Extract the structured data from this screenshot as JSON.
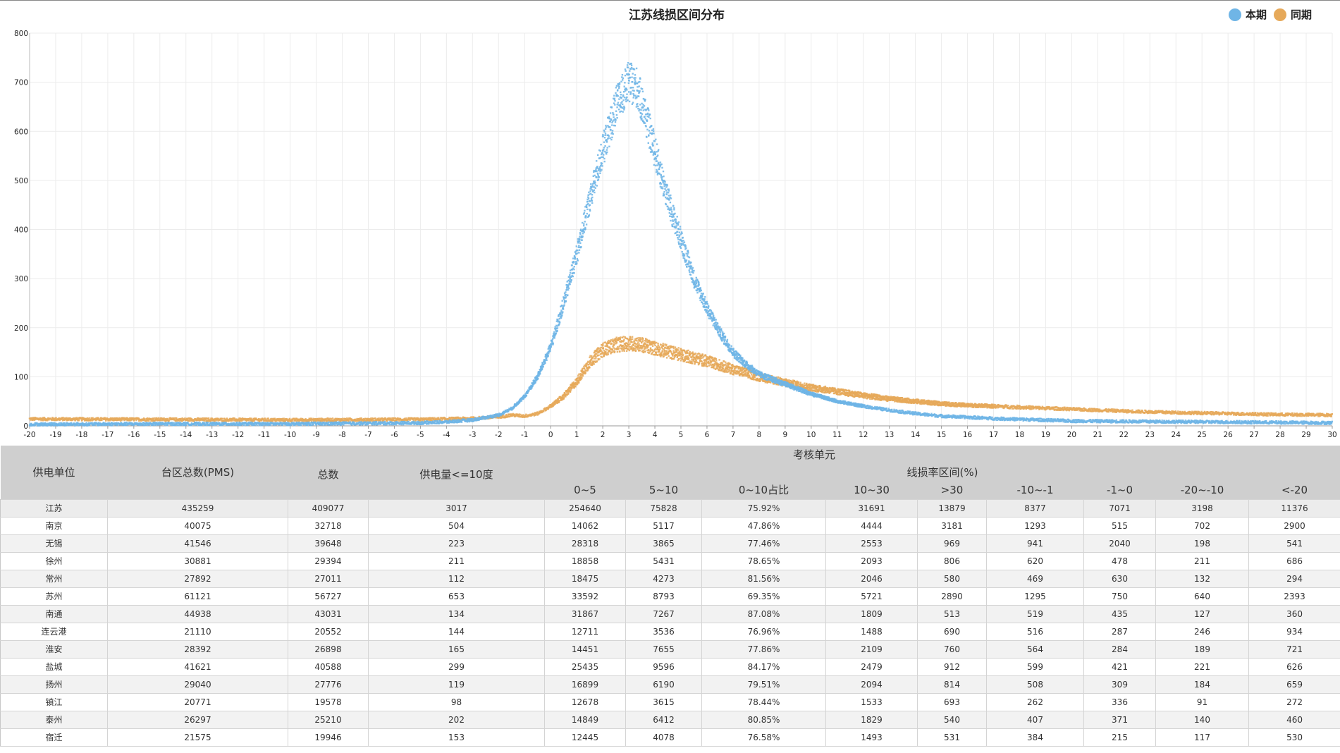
{
  "chart_data": {
    "type": "scatter",
    "title": "江苏线损区间分布",
    "xlim": [
      -20,
      30
    ],
    "ylim": [
      0,
      800
    ],
    "x_ticks": [
      "-20",
      "-19",
      "-18",
      "-17",
      "-16",
      "-15",
      "-14",
      "-13",
      "-12",
      "-11",
      "-10",
      "-9",
      "-8",
      "-7",
      "-6",
      "-5",
      "-4",
      "-3",
      "-2",
      "-1",
      "0",
      "1",
      "2",
      "3",
      "4",
      "5",
      "6",
      "7",
      "8",
      "9",
      "10",
      "11",
      "12",
      "13",
      "14",
      "15",
      "16",
      "17",
      "18",
      "19",
      "20",
      "21",
      "22",
      "23",
      "24",
      "25",
      "26",
      "27",
      "28",
      "29",
      "30"
    ],
    "y_ticks": [
      "0",
      "100",
      "200",
      "300",
      "400",
      "500",
      "600",
      "700",
      "800"
    ],
    "grid": true,
    "legend_position": "top-right",
    "series": [
      {
        "name": "本期",
        "color": "#6fb5e6",
        "points": [
          [
            -20,
            3
          ],
          [
            -15,
            4
          ],
          [
            -10,
            4
          ],
          [
            -5,
            6
          ],
          [
            -4,
            8
          ],
          [
            -3,
            12
          ],
          [
            -2,
            22
          ],
          [
            -1.5,
            35
          ],
          [
            -1,
            60
          ],
          [
            -0.5,
            100
          ],
          [
            0,
            160
          ],
          [
            0.5,
            250
          ],
          [
            1,
            350
          ],
          [
            1.5,
            460
          ],
          [
            2,
            560
          ],
          [
            2.5,
            650
          ],
          [
            3,
            700
          ],
          [
            3.3,
            690
          ],
          [
            3.6,
            640
          ],
          [
            4,
            560
          ],
          [
            4.5,
            460
          ],
          [
            5,
            380
          ],
          [
            5.5,
            300
          ],
          [
            6,
            240
          ],
          [
            6.5,
            190
          ],
          [
            7,
            150
          ],
          [
            7.5,
            125
          ],
          [
            8,
            105
          ],
          [
            9,
            85
          ],
          [
            10,
            65
          ],
          [
            11,
            50
          ],
          [
            12,
            40
          ],
          [
            13,
            32
          ],
          [
            14,
            25
          ],
          [
            15,
            20
          ],
          [
            17,
            15
          ],
          [
            20,
            10
          ],
          [
            25,
            8
          ],
          [
            30,
            6
          ]
        ]
      },
      {
        "name": "同期",
        "color": "#e6a95a",
        "points": [
          [
            -20,
            14
          ],
          [
            -15,
            13
          ],
          [
            -10,
            12
          ],
          [
            -5,
            13
          ],
          [
            -3,
            15
          ],
          [
            -2,
            18
          ],
          [
            -1.5,
            22
          ],
          [
            -1,
            20
          ],
          [
            -0.5,
            25
          ],
          [
            0,
            40
          ],
          [
            0.5,
            60
          ],
          [
            1,
            90
          ],
          [
            1.5,
            130
          ],
          [
            2,
            155
          ],
          [
            2.5,
            165
          ],
          [
            3,
            168
          ],
          [
            3.5,
            165
          ],
          [
            4,
            158
          ],
          [
            5,
            145
          ],
          [
            6,
            132
          ],
          [
            7,
            115
          ],
          [
            8,
            100
          ],
          [
            9,
            88
          ],
          [
            10,
            78
          ],
          [
            11,
            70
          ],
          [
            12,
            62
          ],
          [
            13,
            55
          ],
          [
            14,
            50
          ],
          [
            15,
            45
          ],
          [
            16,
            42
          ],
          [
            18,
            38
          ],
          [
            20,
            34
          ],
          [
            22,
            30
          ],
          [
            24,
            27
          ],
          [
            26,
            25
          ],
          [
            28,
            23
          ],
          [
            30,
            22
          ]
        ]
      }
    ]
  },
  "table": {
    "headers": {
      "unit": "供电单位",
      "pms_total": "台区总数(PMS)",
      "assess": "考核单元",
      "total": "总数",
      "supply_le10": "供电量<=10度",
      "rate_range": "线损率区间(%)",
      "cols": [
        "0~5",
        "5~10",
        "0~10占比",
        "10~30",
        ">30",
        "-10~-1",
        "-1~0",
        "-20~-10",
        "<-20"
      ]
    },
    "rows": [
      [
        "江苏",
        "435259",
        "409077",
        "3017",
        "254640",
        "75828",
        "75.92%",
        "31691",
        "13879",
        "8377",
        "7071",
        "3198",
        "11376"
      ],
      [
        "南京",
        "40075",
        "32718",
        "504",
        "14062",
        "5117",
        "47.86%",
        "4444",
        "3181",
        "1293",
        "515",
        "702",
        "2900"
      ],
      [
        "无锡",
        "41546",
        "39648",
        "223",
        "28318",
        "3865",
        "77.46%",
        "2553",
        "969",
        "941",
        "2040",
        "198",
        "541"
      ],
      [
        "徐州",
        "30881",
        "29394",
        "211",
        "18858",
        "5431",
        "78.65%",
        "2093",
        "806",
        "620",
        "478",
        "211",
        "686"
      ],
      [
        "常州",
        "27892",
        "27011",
        "112",
        "18475",
        "4273",
        "81.56%",
        "2046",
        "580",
        "469",
        "630",
        "132",
        "294"
      ],
      [
        "苏州",
        "61121",
        "56727",
        "653",
        "33592",
        "8793",
        "69.35%",
        "5721",
        "2890",
        "1295",
        "750",
        "640",
        "2393"
      ],
      [
        "南通",
        "44938",
        "43031",
        "134",
        "31867",
        "7267",
        "87.08%",
        "1809",
        "513",
        "519",
        "435",
        "127",
        "360"
      ],
      [
        "连云港",
        "21110",
        "20552",
        "144",
        "12711",
        "3536",
        "76.96%",
        "1488",
        "690",
        "516",
        "287",
        "246",
        "934"
      ],
      [
        "淮安",
        "28392",
        "26898",
        "165",
        "14451",
        "7655",
        "77.86%",
        "2109",
        "760",
        "564",
        "284",
        "189",
        "721"
      ],
      [
        "盐城",
        "41621",
        "40588",
        "299",
        "25435",
        "9596",
        "84.17%",
        "2479",
        "912",
        "599",
        "421",
        "221",
        "626"
      ],
      [
        "扬州",
        "29040",
        "27776",
        "119",
        "16899",
        "6190",
        "79.51%",
        "2094",
        "814",
        "508",
        "309",
        "184",
        "659"
      ],
      [
        "镇江",
        "20771",
        "19578",
        "98",
        "12678",
        "3615",
        "78.44%",
        "1533",
        "693",
        "262",
        "336",
        "91",
        "272"
      ],
      [
        "泰州",
        "26297",
        "25210",
        "202",
        "14849",
        "6412",
        "80.85%",
        "1829",
        "540",
        "407",
        "371",
        "140",
        "460"
      ],
      [
        "宿迁",
        "21575",
        "19946",
        "153",
        "12445",
        "4078",
        "76.58%",
        "1493",
        "531",
        "384",
        "215",
        "117",
        "530"
      ]
    ]
  }
}
